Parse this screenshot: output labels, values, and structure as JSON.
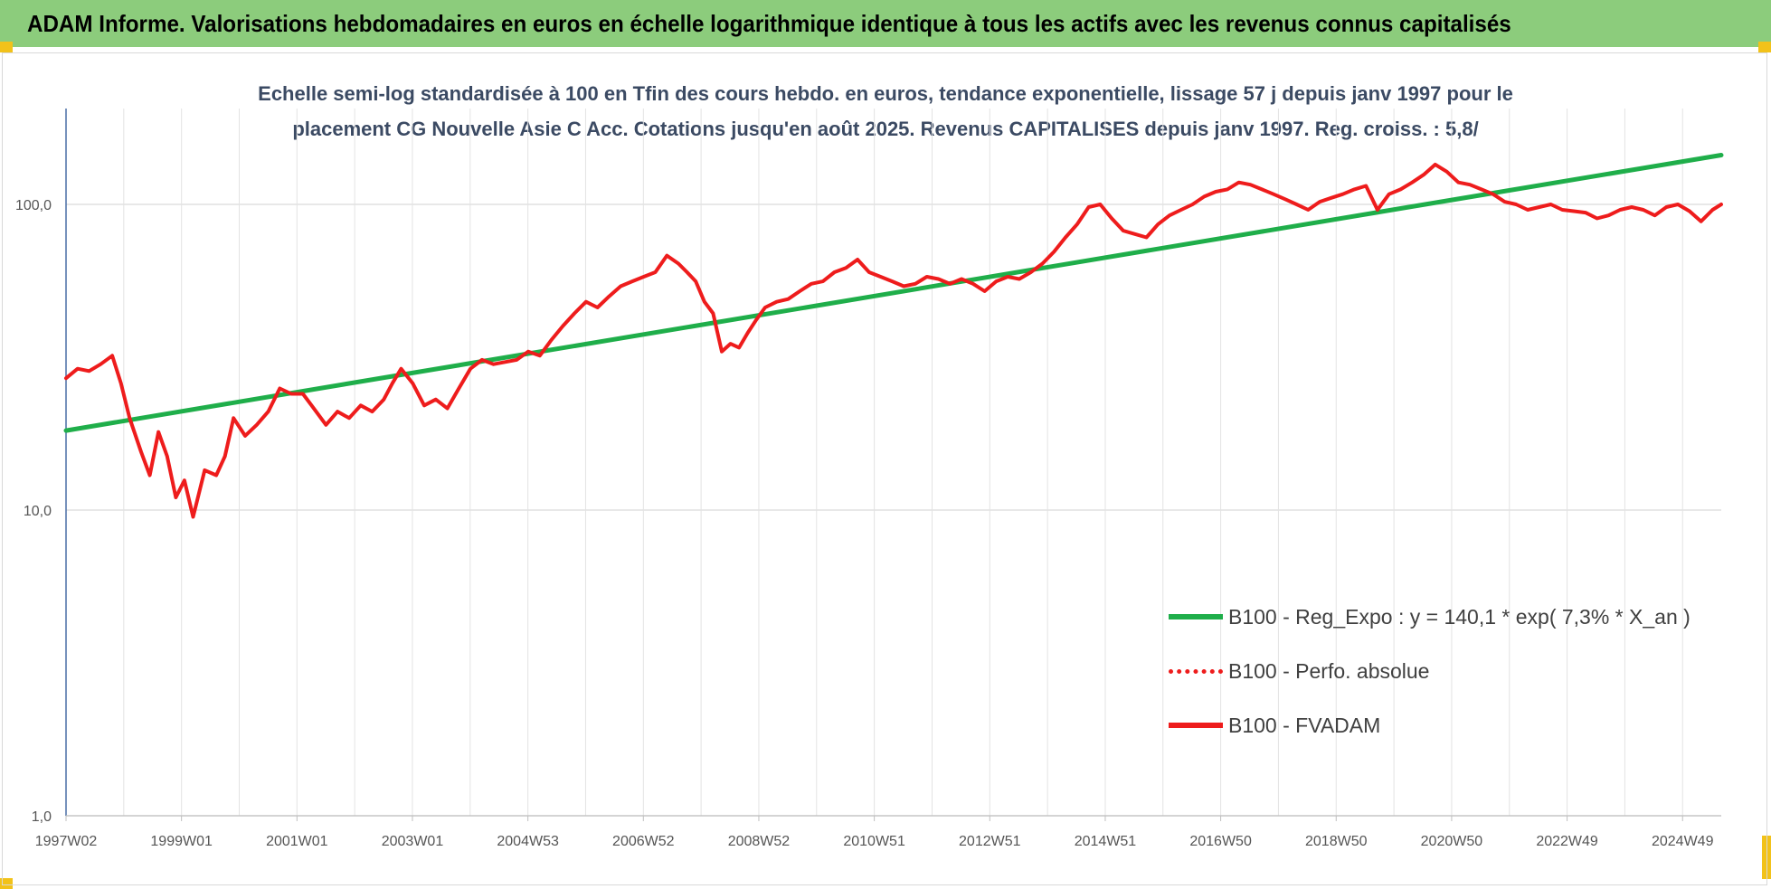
{
  "header": {
    "title": "ADAM Informe. Valorisations hebdomadaires en euros en échelle logarithmique identique à tous les actifs avec les revenus connus capitalisés"
  },
  "chart_data": {
    "type": "line",
    "title_line1": "Echelle semi-log standardisée à 100 en Tfin des cours hebdo. en euros, tendance exponentielle, lissage 57 j depuis janv 1997 pour le",
    "title_line2": "placement CG Nouvelle Asie C Acc. Cotations jusqu'en août 2025. Revenus CAPITALISES depuis janv 1997. Reg. croiss. : 5,8/",
    "y_scale": "log",
    "ylim": [
      1,
      200
    ],
    "y_ticks": [
      "1,0",
      "10,0",
      "100,0"
    ],
    "x_ticks": [
      "1997W02",
      "1999W01",
      "2001W01",
      "2003W01",
      "2004W53",
      "2006W52",
      "2008W52",
      "2010W51",
      "2012W51",
      "2014W51",
      "2016W50",
      "2018W50",
      "2020W50",
      "2022W49",
      "2024W49"
    ],
    "xlim": [
      1997.0,
      2025.65
    ],
    "grid": true,
    "legend_position": "lower-right",
    "series": [
      {
        "name": "B100 - Reg_Expo : y = 140,1 * exp( 7,3% *  X_an )",
        "style": "solid",
        "color": "#1fae4a",
        "x": [
          1997.0,
          2025.65
        ],
        "y": [
          18.2,
          145
        ]
      },
      {
        "name": "B100 - Perfo. absolue",
        "style": "dotted",
        "color": "#ee1c1c",
        "x": [],
        "y": []
      },
      {
        "name": "B100 - FVADAM",
        "style": "solid",
        "color": "#ee1c1c",
        "x": [
          1997.0,
          1997.2,
          1997.4,
          1997.6,
          1997.8,
          1997.95,
          1998.1,
          1998.3,
          1998.45,
          1998.6,
          1998.75,
          1998.9,
          1999.05,
          1999.2,
          1999.4,
          1999.6,
          1999.75,
          1999.9,
          2000.1,
          2000.3,
          2000.5,
          2000.7,
          2000.9,
          2001.1,
          2001.25,
          2001.5,
          2001.7,
          2001.9,
          2002.1,
          2002.3,
          2002.5,
          2002.65,
          2002.8,
          2003.0,
          2003.2,
          2003.4,
          2003.6,
          2003.8,
          2004.0,
          2004.2,
          2004.4,
          2004.6,
          2004.8,
          2005.0,
          2005.2,
          2005.4,
          2005.6,
          2005.8,
          2006.0,
          2006.2,
          2006.4,
          2006.6,
          2006.8,
          2007.0,
          2007.2,
          2007.4,
          2007.6,
          2007.75,
          2007.9,
          2008.05,
          2008.2,
          2008.35,
          2008.5,
          2008.65,
          2008.8,
          2008.95,
          2009.1,
          2009.3,
          2009.5,
          2009.7,
          2009.9,
          2010.1,
          2010.3,
          2010.5,
          2010.7,
          2010.9,
          2011.1,
          2011.3,
          2011.5,
          2011.7,
          2011.9,
          2012.1,
          2012.3,
          2012.5,
          2012.7,
          2012.9,
          2013.1,
          2013.3,
          2013.5,
          2013.7,
          2013.9,
          2014.1,
          2014.3,
          2014.5,
          2014.7,
          2014.9,
          2015.1,
          2015.3,
          2015.5,
          2015.7,
          2015.9,
          2016.1,
          2016.3,
          2016.5,
          2016.7,
          2016.9,
          2017.1,
          2017.3,
          2017.5,
          2017.7,
          2017.9,
          2018.1,
          2018.3,
          2018.5,
          2018.7,
          2018.9,
          2019.1,
          2019.3,
          2019.5,
          2019.7,
          2019.9,
          2020.1,
          2020.3,
          2020.5,
          2020.7,
          2020.9,
          2021.1,
          2021.3,
          2021.5,
          2021.7,
          2021.9,
          2022.1,
          2022.3,
          2022.5,
          2022.7,
          2022.9,
          2023.1,
          2023.3,
          2023.5,
          2023.7,
          2023.9,
          2024.1,
          2024.3,
          2024.5,
          2024.7,
          2024.9,
          2025.1,
          2025.3,
          2025.5,
          2025.65
        ],
        "y": [
          27,
          29,
          28.5,
          30,
          32,
          26,
          20,
          15.5,
          13,
          18,
          15,
          11,
          12.5,
          9.5,
          13.5,
          13,
          15,
          20,
          17.5,
          19,
          21,
          25,
          24,
          24,
          22,
          19,
          21,
          20,
          22,
          21,
          23,
          26,
          29,
          26,
          22,
          23,
          21.5,
          25,
          29,
          31,
          30,
          30.5,
          31,
          33,
          32,
          36,
          40,
          44,
          48,
          46,
          50,
          54,
          56,
          58,
          60,
          68,
          64,
          60,
          56,
          48,
          44,
          33,
          35,
          34,
          38,
          42,
          46,
          48,
          49,
          52,
          55,
          56,
          60,
          62,
          66,
          60,
          58,
          56,
          54,
          55,
          58,
          57,
          55,
          57,
          55,
          52,
          56,
          58,
          57,
          60,
          64,
          70,
          78,
          86,
          98,
          100,
          90,
          82,
          80,
          78,
          86,
          92,
          96,
          100,
          106,
          110,
          112,
          118,
          116,
          112,
          108,
          104,
          100,
          96,
          102,
          105,
          108,
          112,
          115,
          96,
          108,
          112,
          118,
          125,
          135,
          128,
          118,
          116,
          112,
          108,
          102,
          100,
          96,
          98,
          100,
          96,
          95,
          94,
          90,
          92,
          96,
          98,
          96,
          92,
          98,
          100,
          95,
          88,
          96,
          100
        ]
      }
    ]
  }
}
